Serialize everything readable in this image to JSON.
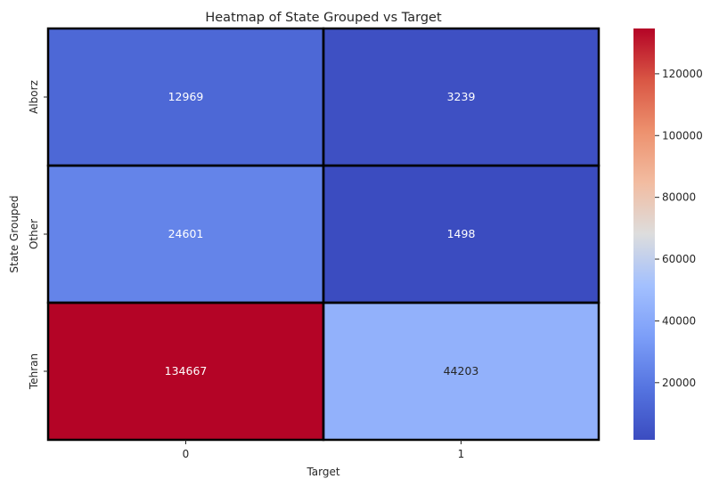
{
  "chart_data": {
    "type": "heatmap",
    "title": "Heatmap of State Grouped vs Target",
    "xlabel": "Target",
    "ylabel": "State Grouped",
    "x_categories": [
      "0",
      "1"
    ],
    "y_categories": [
      "Alborz",
      "Other",
      "Tehran"
    ],
    "values": [
      [
        12969,
        3239
      ],
      [
        24601,
        1498
      ],
      [
        134667,
        44203
      ]
    ],
    "colormap": "coolwarm",
    "colorbar": {
      "min": 1498,
      "max": 134667,
      "ticks": [
        20000,
        40000,
        60000,
        80000,
        100000,
        120000
      ],
      "tick_labels": [
        "20000",
        "40000",
        "60000",
        "80000",
        "100000",
        "120000"
      ]
    },
    "annotate": true,
    "cell_border_color": "#000000"
  }
}
